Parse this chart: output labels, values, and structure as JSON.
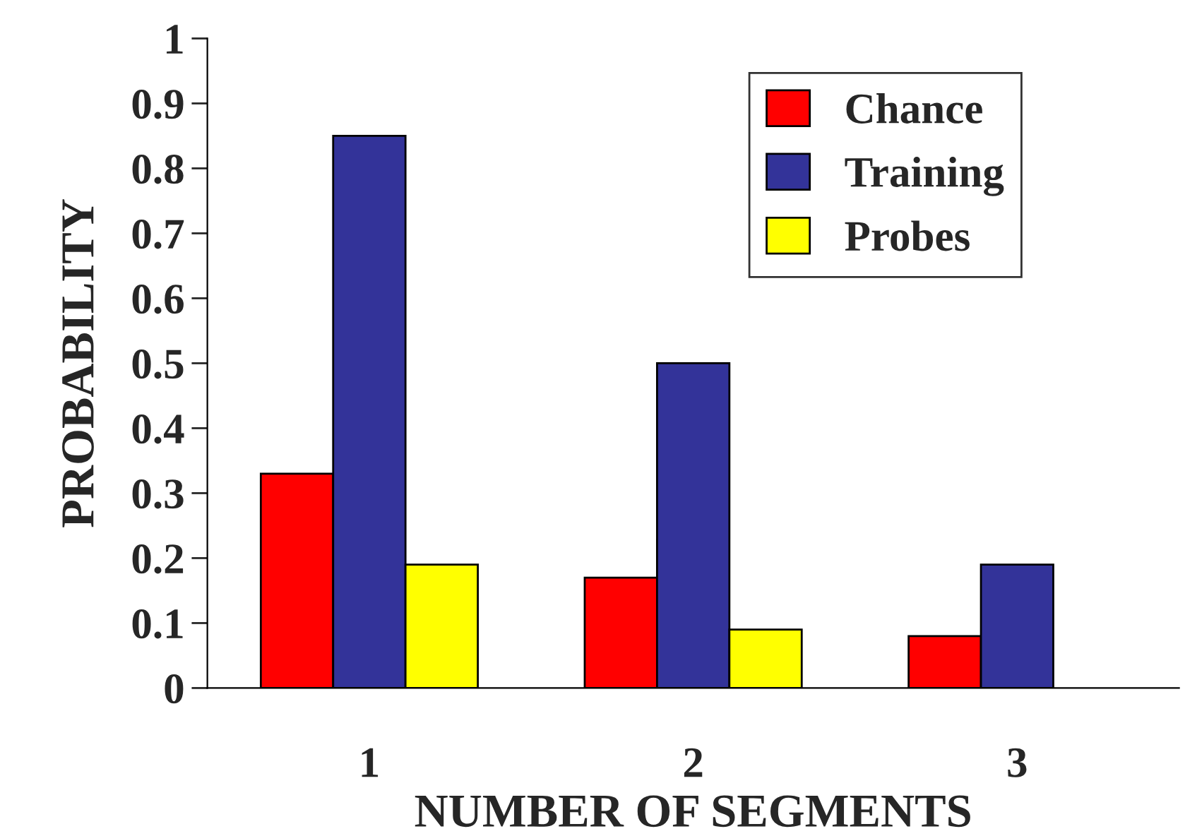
{
  "chart_data": {
    "type": "bar",
    "xlabel": "NUMBER OF SEGMENTS",
    "ylabel": "PROBABILITY",
    "categories": [
      "1",
      "2",
      "3"
    ],
    "series": [
      {
        "name": "Chance",
        "color": "#ff0000",
        "values": [
          0.33,
          0.17,
          0.08
        ]
      },
      {
        "name": "Training",
        "color": "#333399",
        "values": [
          0.85,
          0.5,
          0.19
        ]
      },
      {
        "name": "Probes",
        "color": "#ffff00",
        "values": [
          0.19,
          0.09,
          null
        ]
      }
    ],
    "ylim": [
      0,
      1
    ],
    "yticks": [
      0,
      0.1,
      0.2,
      0.3,
      0.4,
      0.5,
      0.6,
      0.7,
      0.8,
      0.9,
      1
    ],
    "grid": false,
    "legend": "top right"
  }
}
